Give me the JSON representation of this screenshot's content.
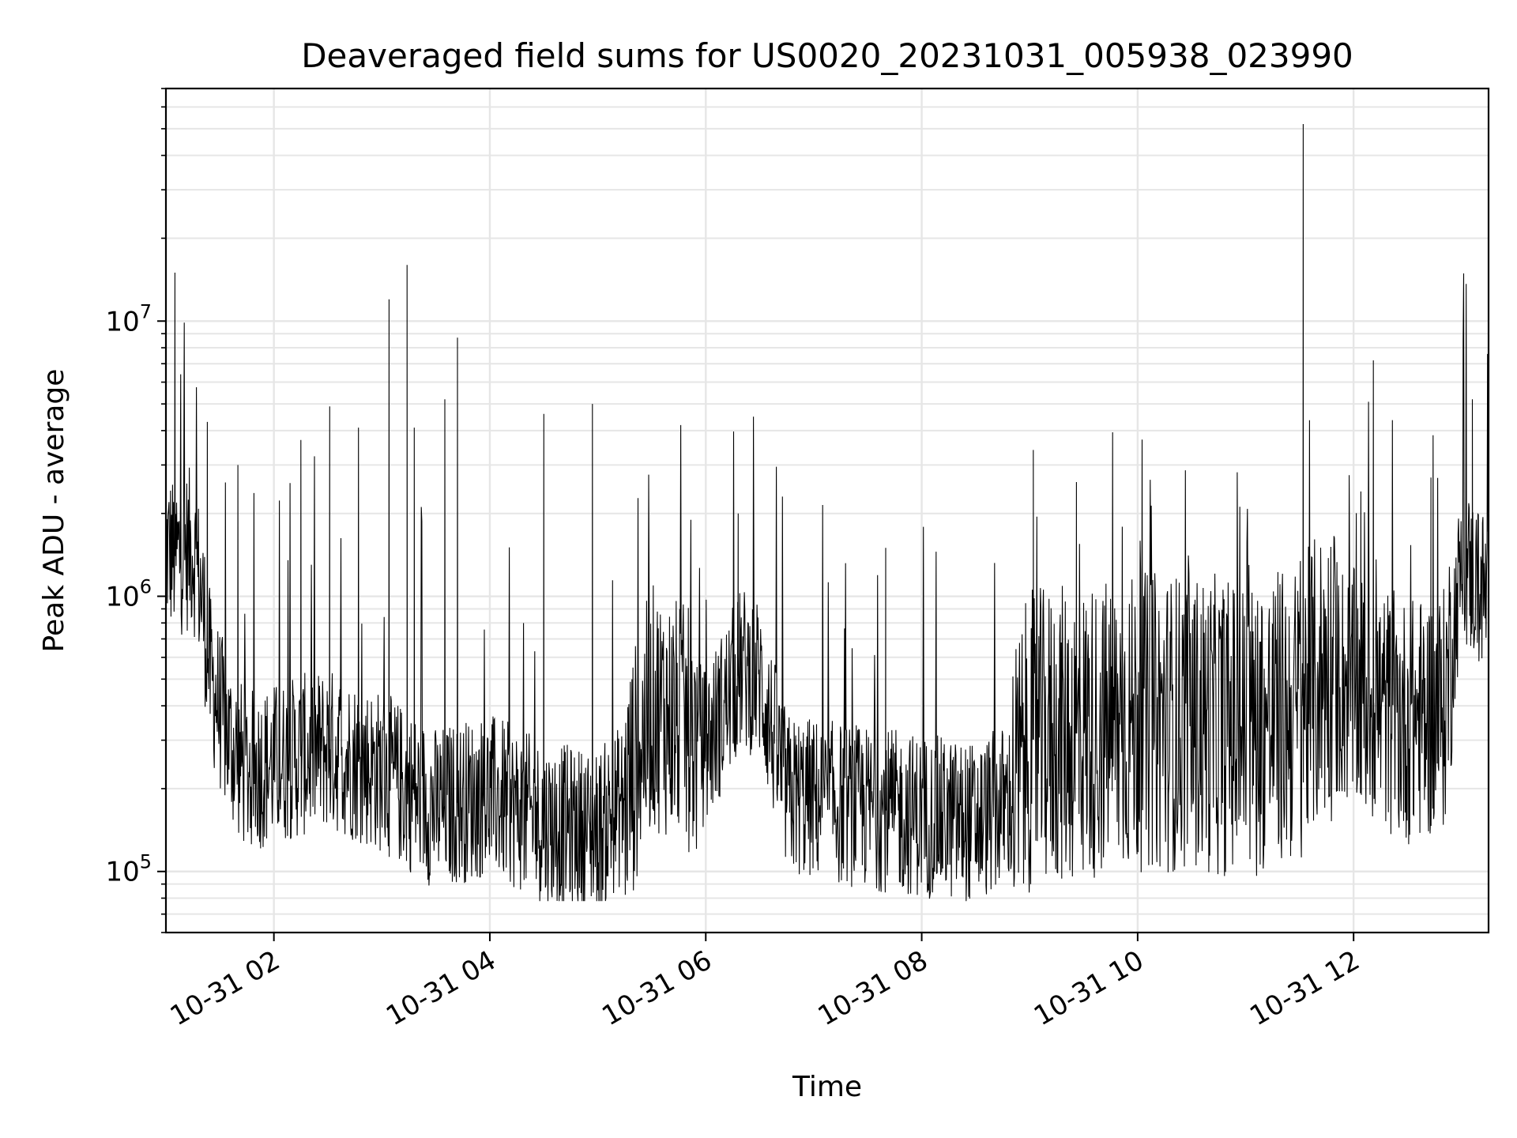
{
  "chart_data": {
    "type": "line",
    "title": "Deaveraged field sums for US0020_20231031_005938_023990",
    "xlabel": "Time",
    "ylabel": "Peak ADU - average",
    "yscale": "log",
    "xlim": [
      "2023-10-31 01:00",
      "2023-10-31 13:15"
    ],
    "ylim": [
      60000,
      70000000
    ],
    "grid": true,
    "line_color": "#000000",
    "grid_color": "#e6e6e6",
    "x_ticks": [
      {
        "t": "2023-10-31 02:00",
        "label": "10-31 02"
      },
      {
        "t": "2023-10-31 04:00",
        "label": "10-31 04"
      },
      {
        "t": "2023-10-31 06:00",
        "label": "10-31 06"
      },
      {
        "t": "2023-10-31 08:00",
        "label": "10-31 08"
      },
      {
        "t": "2023-10-31 10:00",
        "label": "10-31 10"
      },
      {
        "t": "2023-10-31 12:00",
        "label": "10-31 12"
      }
    ],
    "y_ticks": [
      {
        "value": 100000,
        "base": "10",
        "exp": "5"
      },
      {
        "value": 1000000,
        "base": "10",
        "exp": "6"
      },
      {
        "value": 10000000,
        "base": "10",
        "exp": "7"
      }
    ],
    "baseline": {
      "x": [
        "2023-10-31 01:00",
        "2023-10-31 01:05",
        "2023-10-31 01:15",
        "2023-10-31 01:20",
        "2023-10-31 01:25",
        "2023-10-31 01:35",
        "2023-10-31 01:45",
        "2023-10-31 02:30",
        "2023-10-31 03:00",
        "2023-10-31 03:30",
        "2023-10-31 04:00",
        "2023-10-31 04:30",
        "2023-10-31 05:00",
        "2023-10-31 05:15",
        "2023-10-31 05:30",
        "2023-10-31 05:45",
        "2023-10-31 06:00",
        "2023-10-31 06:20",
        "2023-10-31 06:30",
        "2023-10-31 06:45",
        "2023-10-31 07:30",
        "2023-10-31 08:00",
        "2023-10-31 08:30",
        "2023-10-31 08:50",
        "2023-10-31 09:00",
        "2023-10-31 09:30",
        "2023-10-31 10:00",
        "2023-10-31 10:30",
        "2023-10-31 11:00",
        "2023-10-31 11:30",
        "2023-10-31 11:45",
        "2023-10-31 12:00",
        "2023-10-31 12:30",
        "2023-10-31 12:50",
        "2023-10-31 13:00",
        "2023-10-31 13:15"
      ],
      "y": [
        1500000,
        1400000,
        1500000,
        1000000,
        500000,
        300000,
        230000,
        280000,
        230000,
        170000,
        190000,
        150000,
        140000,
        180000,
        400000,
        350000,
        280000,
        550000,
        500000,
        190000,
        170000,
        160000,
        150000,
        180000,
        300000,
        320000,
        350000,
        350000,
        330000,
        380000,
        550000,
        450000,
        350000,
        380000,
        1300000,
        1000000
      ]
    },
    "spikes": [
      {
        "x": "2023-10-31 01:05",
        "y": 15000000
      },
      {
        "x": "2023-10-31 01:23",
        "y": 4300000
      },
      {
        "x": "2023-10-31 01:40",
        "y": 3000000
      },
      {
        "x": "2023-10-31 02:15",
        "y": 3700000
      },
      {
        "x": "2023-10-31 02:31",
        "y": 4900000
      },
      {
        "x": "2023-10-31 02:47",
        "y": 4100000
      },
      {
        "x": "2023-10-31 03:04",
        "y": 12000000
      },
      {
        "x": "2023-10-31 03:14",
        "y": 16000000
      },
      {
        "x": "2023-10-31 03:18",
        "y": 4100000
      },
      {
        "x": "2023-10-31 03:35",
        "y": 5200000
      },
      {
        "x": "2023-10-31 03:42",
        "y": 8700000
      },
      {
        "x": "2023-10-31 04:30",
        "y": 4600000
      },
      {
        "x": "2023-10-31 04:57",
        "y": 5000000
      },
      {
        "x": "2023-10-31 06:18",
        "y": 2000000
      },
      {
        "x": "2023-10-31 07:40",
        "y": 1500000
      },
      {
        "x": "2023-10-31 09:02",
        "y": 3400000
      },
      {
        "x": "2023-10-31 09:26",
        "y": 2600000
      },
      {
        "x": "2023-10-31 11:32",
        "y": 52000000
      },
      {
        "x": "2023-10-31 12:11",
        "y": 7200000
      },
      {
        "x": "2023-10-31 12:43",
        "y": 2700000
      },
      {
        "x": "2023-10-31 13:06",
        "y": 5200000
      }
    ]
  }
}
